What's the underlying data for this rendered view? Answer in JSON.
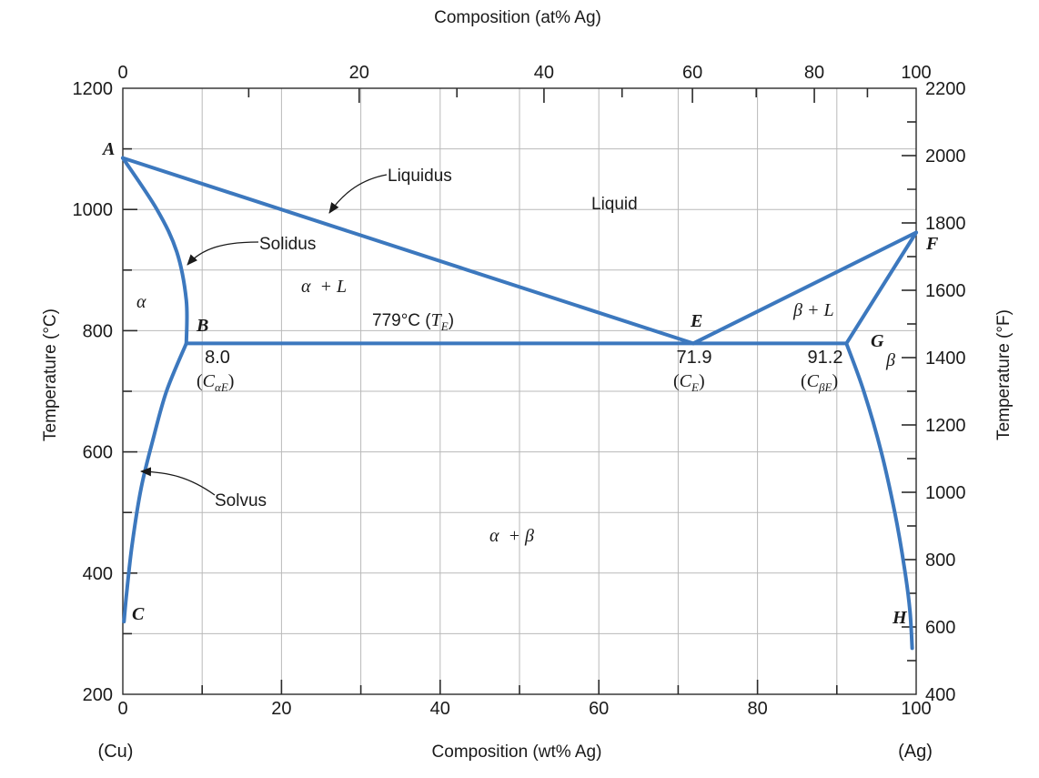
{
  "chart_data": {
    "type": "line",
    "title": "Composition (at% Ag)",
    "xlabel": "Composition (wt% Ag)",
    "ylabel_left": "Temperature (°C)",
    "ylabel_right": "Temperature (°F)",
    "xlim": [
      0,
      100
    ],
    "ylim": [
      200,
      1200
    ],
    "ylim_right": [
      400,
      2200
    ],
    "grid": true,
    "x_ticks": [
      {
        "value": 0,
        "label": "0"
      },
      {
        "value": 20,
        "label": "20"
      },
      {
        "value": 40,
        "label": "40"
      },
      {
        "value": 60,
        "label": "60"
      },
      {
        "value": 80,
        "label": "80"
      },
      {
        "value": 100,
        "label": "100"
      }
    ],
    "x_end_labels": {
      "left": "(Cu)",
      "right": "(Ag)"
    },
    "top_ticks": [
      {
        "value": 0,
        "label": "0"
      },
      {
        "value": 20,
        "label": "20"
      },
      {
        "value": 40,
        "label": "40"
      },
      {
        "value": 60,
        "label": "60"
      },
      {
        "value": 80,
        "label": "80"
      },
      {
        "value": 100,
        "label": "100"
      }
    ],
    "y_ticks": [
      {
        "value": 200,
        "label": "200"
      },
      {
        "value": 400,
        "label": "400"
      },
      {
        "value": 600,
        "label": "600"
      },
      {
        "value": 800,
        "label": "800"
      },
      {
        "value": 1000,
        "label": "1000"
      },
      {
        "value": 1200,
        "label": "1200"
      }
    ],
    "y_right_ticks": [
      {
        "value": 400,
        "label": "400"
      },
      {
        "value": 600,
        "label": "600"
      },
      {
        "value": 800,
        "label": "800"
      },
      {
        "value": 1000,
        "label": "1000"
      },
      {
        "value": 1200,
        "label": "1200"
      },
      {
        "value": 1400,
        "label": "1400"
      },
      {
        "value": 1600,
        "label": "1600"
      },
      {
        "value": 1800,
        "label": "1800"
      },
      {
        "value": 2000,
        "label": "2000"
      },
      {
        "value": 2200,
        "label": "2200"
      }
    ],
    "series": [
      {
        "name": "Liquidus (Cu side)",
        "points": [
          [
            0,
            1085
          ],
          [
            71.9,
            779
          ]
        ]
      },
      {
        "name": "Liquidus (Ag side)",
        "points": [
          [
            71.9,
            779
          ],
          [
            100,
            962
          ]
        ]
      },
      {
        "name": "Eutectic isotherm",
        "points": [
          [
            8.0,
            779
          ],
          [
            91.2,
            779
          ]
        ]
      },
      {
        "name": "Solidus (alpha)",
        "points": [
          [
            0,
            1085
          ],
          [
            4.3,
            1000
          ],
          [
            6.8,
            930
          ],
          [
            8.0,
            850
          ],
          [
            8.0,
            779
          ]
        ]
      },
      {
        "name": "Solidus (beta)",
        "points": [
          [
            91.2,
            779
          ],
          [
            100,
            962
          ]
        ]
      },
      {
        "name": "Solvus (alpha)",
        "points": [
          [
            8.0,
            779
          ],
          [
            5.5,
            700
          ],
          [
            3.8,
            620
          ],
          [
            2.3,
            540
          ],
          [
            1.2,
            450
          ],
          [
            0.5,
            370
          ],
          [
            0.15,
            320
          ]
        ]
      },
      {
        "name": "Solvus (beta)",
        "points": [
          [
            91.2,
            779
          ],
          [
            93.4,
            700
          ],
          [
            95.6,
            600
          ],
          [
            97.3,
            500
          ],
          [
            98.5,
            410
          ],
          [
            99.2,
            340
          ],
          [
            99.5,
            276
          ]
        ]
      }
    ],
    "points": [
      {
        "name": "A",
        "label": "A",
        "x": 0,
        "y": 1085
      },
      {
        "name": "B",
        "label": "B",
        "x": 8.0,
        "y": 779
      },
      {
        "name": "C",
        "label": "C",
        "x": 0,
        "y": 320
      },
      {
        "name": "E",
        "label": "E",
        "x": 71.9,
        "y": 779
      },
      {
        "name": "F",
        "label": "F",
        "x": 100,
        "y": 962
      },
      {
        "name": "G",
        "label": "G",
        "x": 91.2,
        "y": 779
      },
      {
        "name": "H",
        "label": "H",
        "x": 100,
        "y": 276
      }
    ],
    "regions": [
      {
        "name": "liquid",
        "label": "Liquid"
      },
      {
        "name": "alpha",
        "label": "α"
      },
      {
        "name": "alpha-plus-liquid",
        "label": "α  + L"
      },
      {
        "name": "beta-plus-liquid",
        "label": "β + L"
      },
      {
        "name": "beta",
        "label": "β"
      },
      {
        "name": "alpha-plus-beta",
        "label": "α  + β"
      }
    ],
    "annotations": {
      "liquidus": "Liquidus",
      "solidus": "Solidus",
      "solvus": "Solvus",
      "eutectic_temp_value": "779°C (",
      "eutectic_temp_symbol": "T",
      "eutectic_temp_sub": "E",
      "eutectic_temp_close": ")",
      "ca_value": "8.0",
      "ca_open": "(",
      "ca_symbol": "C",
      "ca_sub": "αE",
      "ca_close": ")",
      "ce_value": "71.9",
      "ce_open": "(",
      "ce_symbol": "C",
      "ce_sub": "E",
      "ce_close": ")",
      "cb_value": "91.2",
      "cb_open": "(",
      "cb_symbol": "C",
      "cb_sub": "βE",
      "cb_close": ")"
    }
  }
}
